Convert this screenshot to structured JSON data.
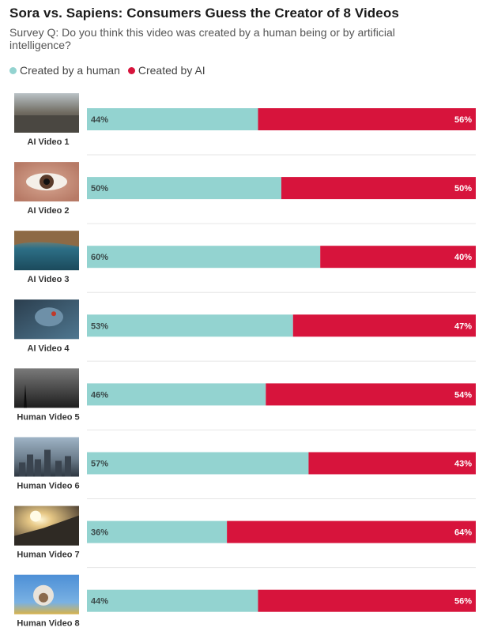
{
  "title": "Sora vs. Sapiens: Consumers Guess the Creator of 8 Videos",
  "subtitle": "Survey Q: Do you think this video was created by a human being or by artificial intelligence?",
  "colors": {
    "human": "#93d3d0",
    "ai": "#d7143c"
  },
  "chart_data": {
    "type": "bar",
    "orientation": "horizontal",
    "stacked": true,
    "percent": true,
    "categories": [
      "AI Video 1",
      "AI Video 2",
      "AI Video 3",
      "AI Video 4",
      "Human Video 5",
      "Human Video 6",
      "Human Video 7",
      "Human Video 8"
    ],
    "series": [
      {
        "name": "Created by a human",
        "values": [
          44,
          50,
          60,
          53,
          46,
          57,
          36,
          44
        ],
        "color": "#93d3d0"
      },
      {
        "name": "Created by AI",
        "values": [
          56,
          50,
          40,
          47,
          54,
          43,
          64,
          56
        ],
        "color": "#d7143c"
      }
    ],
    "xlim": [
      0,
      100
    ],
    "legend": "top-left",
    "grid": false
  }
}
